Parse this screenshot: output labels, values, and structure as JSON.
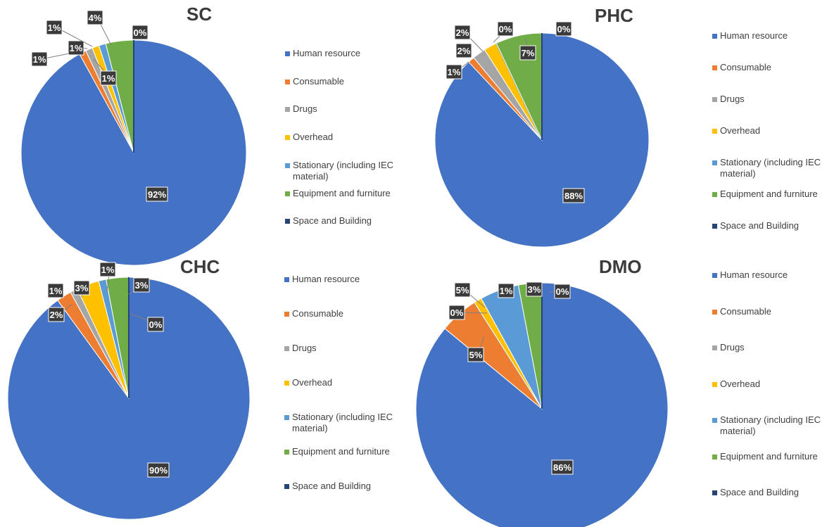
{
  "categories": [
    "Human resource",
    "Consumable",
    "Drugs",
    "Overhead",
    "Stationary (including IEC material)",
    "Equipment and furniture",
    "Space and Building"
  ],
  "colors": [
    "#4472c4",
    "#ed7d31",
    "#a5a5a5",
    "#ffc000",
    "#5b9bd5",
    "#70ad47",
    "#264478"
  ],
  "chart_data": [
    {
      "type": "pie",
      "title": "SC",
      "categories": [
        "Human resource",
        "Consumable",
        "Drugs",
        "Overhead",
        "Stationary (including IEC material)",
        "Equipment and furniture",
        "Space and Building"
      ],
      "values": [
        92,
        1,
        1,
        1,
        1,
        4,
        0
      ],
      "data_labels": [
        "92%",
        "1%",
        "1%",
        "1%",
        "1%",
        "4%",
        "0%"
      ],
      "legend_position": "right"
    },
    {
      "type": "pie",
      "title": "PHC",
      "categories": [
        "Human resource",
        "Consumable",
        "Drugs",
        "Overhead",
        "Stationary (including IEC material)",
        "Equipment and furniture",
        "Space and Building"
      ],
      "values": [
        88,
        1,
        2,
        2,
        0,
        7,
        0
      ],
      "data_labels": [
        "88%",
        "1%",
        "2%",
        "2%",
        "0%",
        "7%",
        "0%"
      ],
      "legend_position": "right"
    },
    {
      "type": "pie",
      "title": "CHC",
      "categories": [
        "Human resource",
        "Consumable",
        "Drugs",
        "Overhead",
        "Stationary (including IEC material)",
        "Equipment and furniture",
        "Space and Building"
      ],
      "values": [
        90,
        2,
        1,
        3,
        1,
        3,
        0
      ],
      "data_labels": [
        "90%",
        "2%",
        "1%",
        "3%",
        "1%",
        "3%",
        "0%"
      ],
      "legend_position": "right"
    },
    {
      "type": "pie",
      "title": "DMO",
      "categories": [
        "Human resource",
        "Consumable",
        "Drugs",
        "Overhead",
        "Stationary (including IEC material)",
        "Equipment and furniture",
        "Space and Building"
      ],
      "values": [
        86,
        5,
        0,
        1,
        5,
        3,
        0
      ],
      "data_labels": [
        "86%",
        "5%",
        "0%",
        "1%",
        "5%",
        "3%",
        "0%"
      ],
      "legend_position": "right"
    }
  ]
}
